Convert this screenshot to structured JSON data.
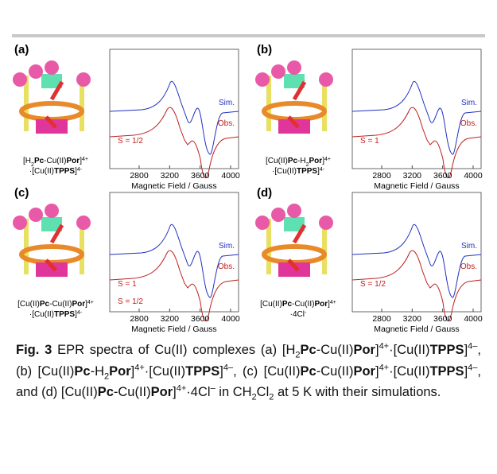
{
  "panels": [
    {
      "label": "(a)",
      "molecule": [
        [
          {
            "t": "[H"
          },
          {
            "t": "2",
            "sub": true
          },
          {
            "t": "Pc",
            "b": true
          },
          {
            "t": "-Cu(II)"
          },
          {
            "t": "Por",
            "b": true
          },
          {
            "t": "]"
          },
          {
            "t": "4+",
            "sup": true
          }
        ],
        [
          {
            "t": "·[Cu(II)"
          },
          {
            "t": "TPPS",
            "b": true
          },
          {
            "t": "]"
          },
          {
            "t": "4-",
            "sup": true
          }
        ]
      ],
      "annotations": [
        "Sim.",
        "Obs.",
        "S = 1/2"
      ],
      "x_ticks": [
        2800,
        3200,
        3600,
        4000
      ],
      "x_axis_label": "Magnetic Field / Gauss"
    },
    {
      "label": "(b)",
      "molecule": [
        [
          {
            "t": "[Cu(II)"
          },
          {
            "t": "Pc",
            "b": true
          },
          {
            "t": "-H"
          },
          {
            "t": "2",
            "sub": true
          },
          {
            "t": "Por",
            "b": true
          },
          {
            "t": "]"
          },
          {
            "t": "4+",
            "sup": true
          }
        ],
        [
          {
            "t": "·[Cu(II)"
          },
          {
            "t": "TPPS",
            "b": true
          },
          {
            "t": "]"
          },
          {
            "t": "4-",
            "sup": true
          }
        ]
      ],
      "annotations": [
        "Sim.",
        "Obs.",
        "S = 1"
      ],
      "x_ticks": [
        2800,
        3200,
        3600,
        4000
      ],
      "x_axis_label": "Magnetic Field / Gauss"
    },
    {
      "label": "(c)",
      "molecule": [
        [
          {
            "t": "[Cu(II)"
          },
          {
            "t": "Pc",
            "b": true
          },
          {
            "t": "-Cu(II)"
          },
          {
            "t": "Por",
            "b": true
          },
          {
            "t": "]"
          },
          {
            "t": "4+",
            "sup": true
          }
        ],
        [
          {
            "t": "·[Cu(II)"
          },
          {
            "t": "TPPS",
            "b": true
          },
          {
            "t": "]"
          },
          {
            "t": "4-",
            "sup": true
          }
        ]
      ],
      "annotations": [
        "Sim.",
        "Obs.",
        "S = 1",
        "S = 1/2"
      ],
      "x_ticks": [
        2800,
        3200,
        3600,
        4000
      ],
      "x_axis_label": "Magnetic Field / Gauss"
    },
    {
      "label": "(d)",
      "molecule": [
        [
          {
            "t": "[Cu(II)"
          },
          {
            "t": "Pc",
            "b": true
          },
          {
            "t": "-Cu(II)"
          },
          {
            "t": "Por",
            "b": true
          },
          {
            "t": "]"
          },
          {
            "t": "4+",
            "sup": true
          }
        ],
        [
          {
            "t": "·4Cl"
          },
          {
            "t": "-",
            "sup": true
          }
        ]
      ],
      "annotations": [
        "Sim.",
        "Obs.",
        "S = 1/2"
      ],
      "x_ticks": [
        2800,
        3200,
        3600,
        4000
      ],
      "x_axis_label": "Magnetic Field / Gauss"
    }
  ],
  "caption": {
    "runs": [
      {
        "t": "Fig. 3",
        "b": true
      },
      {
        "t": "  EPR spectra of Cu(II) complexes (a) [H"
      },
      {
        "t": "2",
        "sub": true
      },
      {
        "t": "Pc",
        "b": true
      },
      {
        "t": "-Cu(II)"
      },
      {
        "t": "Por",
        "b": true
      },
      {
        "t": "]"
      },
      {
        "t": "4+",
        "sup": true
      },
      {
        "t": "·[Cu(II)"
      },
      {
        "t": "TPPS",
        "b": true
      },
      {
        "t": "]"
      },
      {
        "t": "4–",
        "sup": true
      },
      {
        "t": ", (b) [Cu(II)"
      },
      {
        "t": "Pc",
        "b": true
      },
      {
        "t": "-H"
      },
      {
        "t": "2",
        "sub": true
      },
      {
        "t": "Por",
        "b": true
      },
      {
        "t": "]"
      },
      {
        "t": "4+",
        "sup": true
      },
      {
        "t": "·[Cu(II)"
      },
      {
        "t": "TPPS",
        "b": true
      },
      {
        "t": "]"
      },
      {
        "t": "4–",
        "sup": true
      },
      {
        "t": ", (c) [Cu(II)"
      },
      {
        "t": "Pc",
        "b": true
      },
      {
        "t": "-Cu(II)"
      },
      {
        "t": "Por",
        "b": true
      },
      {
        "t": "]"
      },
      {
        "t": "4+",
        "sup": true
      },
      {
        "t": "·[Cu(II)"
      },
      {
        "t": "TPPS",
        "b": true
      },
      {
        "t": "]"
      },
      {
        "t": "4–",
        "sup": true
      },
      {
        "t": ", and (d) [Cu(II)"
      },
      {
        "t": "Pc",
        "b": true
      },
      {
        "t": "-Cu(II)"
      },
      {
        "t": "Por",
        "b": true
      },
      {
        "t": "]"
      },
      {
        "t": "4+",
        "sup": true
      },
      {
        "t": "·4Cl"
      },
      {
        "t": "–",
        "sup": true
      },
      {
        "t": " in CH"
      },
      {
        "t": "2",
        "sub": true
      },
      {
        "t": "Cl"
      },
      {
        "t": "2",
        "sub": true
      },
      {
        "t": " at 5 K with their simulations."
      }
    ]
  }
}
